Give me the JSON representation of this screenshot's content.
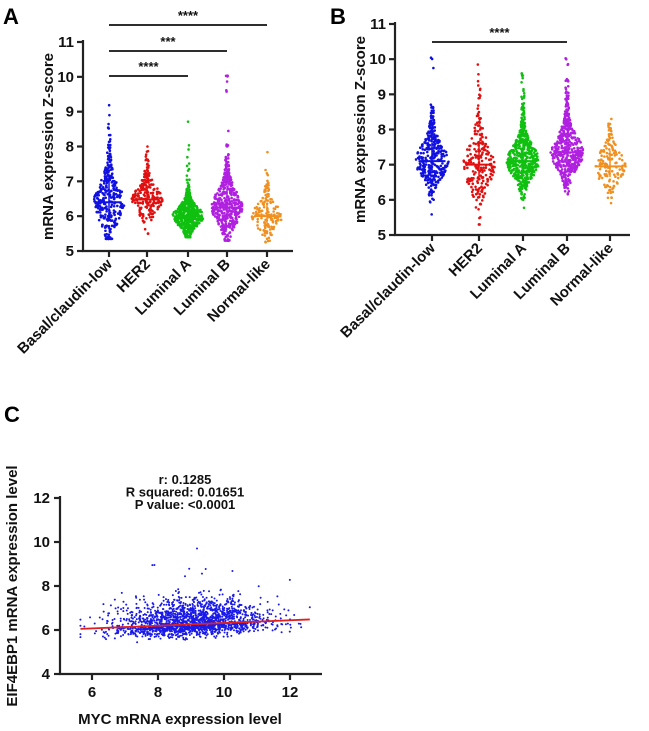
{
  "chart_data": [
    {
      "panel": "A",
      "type": "scatter",
      "subtype": "swarm",
      "ylabel": "mRNA expression Z-score",
      "ylim": [
        5,
        11
      ],
      "yticks": [
        5,
        6,
        7,
        8,
        9,
        10,
        11
      ],
      "categories": [
        "Basal/claudin-low",
        "HER2",
        "Luminal A",
        "Luminal B",
        "Normal-like"
      ],
      "colors": [
        "#1010e0",
        "#e01010",
        "#10c010",
        "#b020e0",
        "#f09020"
      ],
      "series": [
        {
          "median": 6.4,
          "sd": 0.8,
          "min": 5.35,
          "max": 9.35,
          "n": 320
        },
        {
          "median": 6.48,
          "sd": 0.55,
          "min": 5.5,
          "max": 8.0,
          "n": 220
        },
        {
          "median": 6.0,
          "sd": 0.4,
          "min": 5.4,
          "max": 8.85,
          "n": 520
        },
        {
          "median": 6.25,
          "sd": 0.7,
          "min": 5.3,
          "max": 10.3,
          "n": 460
        },
        {
          "median": 6.0,
          "sd": 0.5,
          "min": 5.25,
          "max": 8.4,
          "n": 150
        }
      ],
      "significance": [
        {
          "from": 0,
          "to": 4,
          "label": "****"
        },
        {
          "from": 0,
          "to": 3,
          "label": "***"
        },
        {
          "from": 0,
          "to": 2,
          "label": "****"
        }
      ]
    },
    {
      "panel": "B",
      "type": "scatter",
      "subtype": "swarm",
      "ylabel": "mRNA expression Z-score",
      "ylim": [
        5,
        11
      ],
      "yticks": [
        5,
        6,
        7,
        8,
        9,
        10,
        11
      ],
      "categories": [
        "Basal/claudin-low",
        "HER2",
        "Luminal A",
        "Luminal B",
        "Normal-like"
      ],
      "colors": [
        "#1010e0",
        "#e01010",
        "#10c010",
        "#b020e0",
        "#f09020"
      ],
      "series": [
        {
          "median": 7.1,
          "sd": 0.7,
          "min": 5.4,
          "max": 10.3,
          "n": 320
        },
        {
          "median": 7.0,
          "sd": 0.9,
          "min": 5.3,
          "max": 10.5,
          "n": 220
        },
        {
          "median": 7.1,
          "sd": 0.65,
          "min": 5.4,
          "max": 9.6,
          "n": 520
        },
        {
          "median": 7.35,
          "sd": 0.7,
          "min": 5.5,
          "max": 10.4,
          "n": 460
        },
        {
          "median": 6.95,
          "sd": 0.6,
          "min": 5.3,
          "max": 8.3,
          "n": 150
        }
      ],
      "significance": [
        {
          "from": 0,
          "to": 3,
          "label": "****"
        }
      ]
    },
    {
      "panel": "C",
      "type": "scatter",
      "xlabel": "MYC mRNA expression level",
      "ylabel": "EIF4EBP1 mRNA expression level",
      "xlim": [
        5.5,
        13
      ],
      "ylim": [
        4,
        12
      ],
      "xticks": [
        6,
        8,
        10,
        12
      ],
      "yticks": [
        4,
        6,
        8,
        10,
        12
      ],
      "color": "#1a1ae8",
      "fit_color": "#e02020",
      "fit": {
        "x": [
          5.65,
          12.6
        ],
        "y": [
          6.05,
          6.48
        ]
      },
      "n": 1900,
      "stats": [
        "r: 0.1285",
        "R squared: 0.01651",
        "P value: <0.0001"
      ]
    }
  ],
  "panel_labels": [
    "A",
    "B",
    "C"
  ]
}
